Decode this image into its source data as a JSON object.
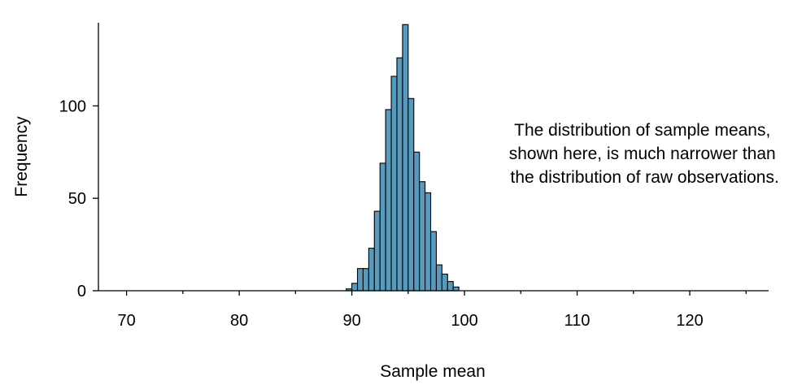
{
  "chart_data": {
    "type": "bar",
    "xlabel": "Sample mean",
    "ylabel": "Frequency",
    "xlim": [
      67.5,
      127
    ],
    "ylim": [
      0,
      145
    ],
    "x_ticks": [
      70,
      80,
      90,
      100,
      110,
      120
    ],
    "x_ticks_labels": [
      "70",
      "80",
      "90",
      "100",
      "110",
      "120"
    ],
    "x_minor_ticks": [
      75,
      85,
      95,
      105,
      115,
      125
    ],
    "y_ticks": [
      0,
      50,
      100
    ],
    "y_ticks_labels": [
      "0",
      "50",
      "100"
    ],
    "bin_width": 0.5,
    "bins_start": [
      89.5,
      90,
      90.5,
      91,
      91.5,
      92,
      92.5,
      93,
      93.5,
      94,
      94.5,
      95,
      95.5,
      96,
      96.5,
      97,
      97.5,
      98,
      98.5,
      99
    ],
    "values": [
      1,
      4,
      12,
      12,
      23,
      43,
      69,
      98,
      116,
      126,
      144,
      104,
      75,
      59,
      53,
      32,
      14,
      9,
      5,
      2
    ],
    "bar_color": "#569BBD",
    "annotation_lines": [
      "The distribution of sample means,",
      "shown here, is much narrower than",
      "the distribution of raw observations."
    ],
    "annotation_anchor": {
      "x": 116,
      "y_line1": 87
    }
  }
}
